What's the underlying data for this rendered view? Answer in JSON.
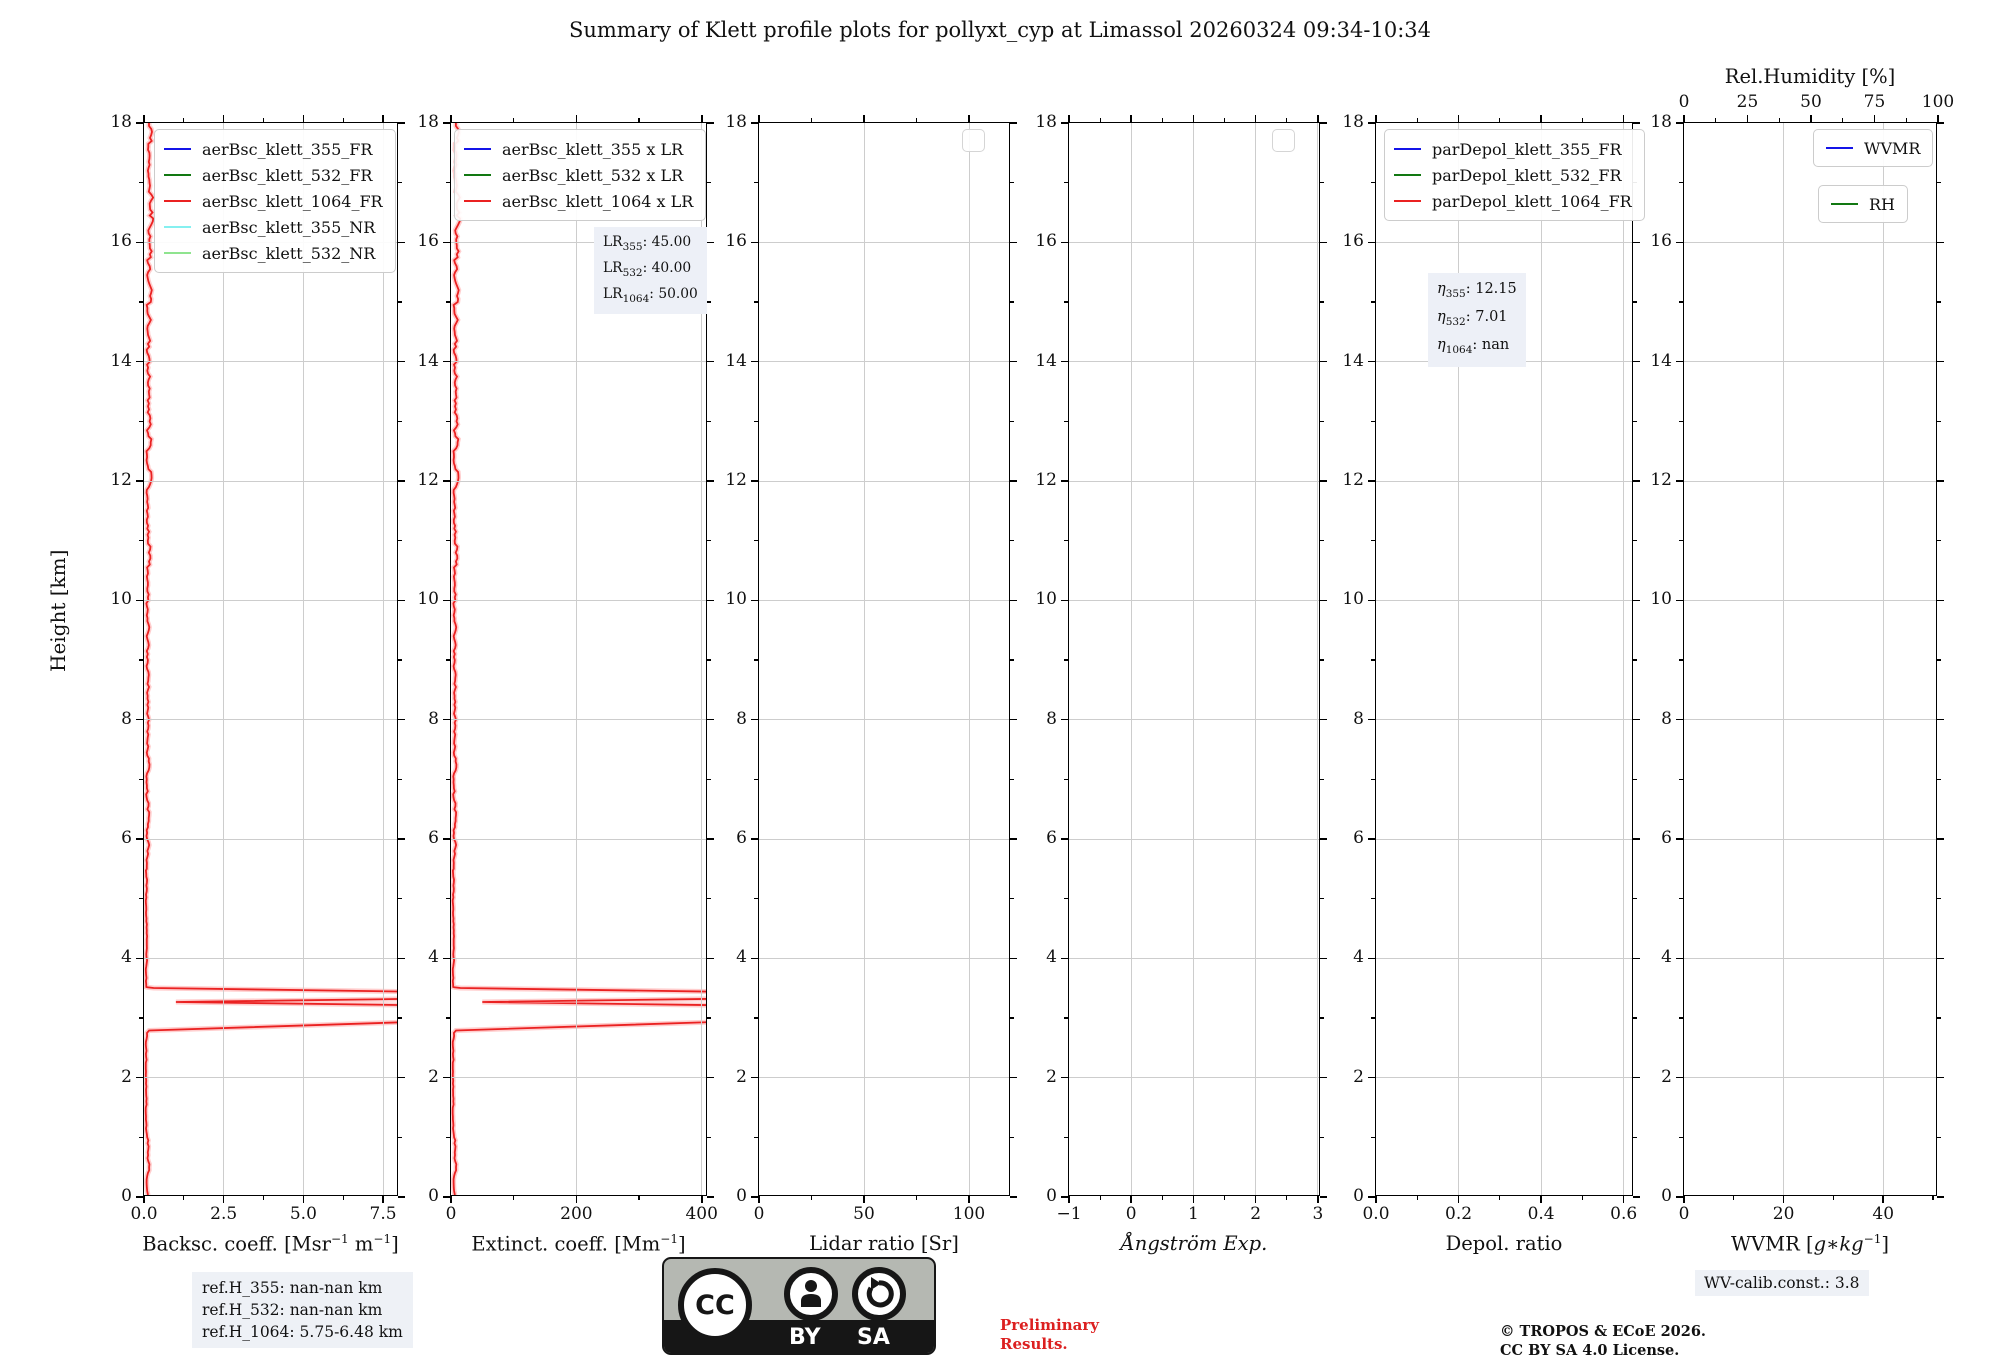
{
  "title": "Summary of Klett profile plots for pollyxt_cyp at Limassol 20260324 09:34-10:34",
  "ylabel": "Height [km]",
  "colors": {
    "blue": "#1414e8",
    "green": "#127812",
    "red": "#ea2121",
    "cyan": "#85f0f0",
    "lightgreen": "#8fe48f",
    "grid": "#cdcdcd",
    "box_bg": "#edf0f7",
    "prelim_red": "#dc2020"
  },
  "plots": {
    "backscatter": {
      "xlabel": {
        "a": "Backsc. coeff. [Msr",
        "s1": "−1",
        "b": " m",
        "s2": "−1",
        "c": "]"
      },
      "legend": [
        {
          "label": "aerBsc_klett_355_FR",
          "color": "blue"
        },
        {
          "label": "aerBsc_klett_532_FR",
          "color": "green"
        },
        {
          "label": "aerBsc_klett_1064_FR",
          "color": "red"
        },
        {
          "label": "aerBsc_klett_355_NR",
          "color": "cyan"
        },
        {
          "label": "aerBsc_klett_532_NR",
          "color": "lightgreen"
        }
      ]
    },
    "extinction": {
      "xlabel": {
        "a": "Extinct. coeff. [Mm",
        "s1": "−1",
        "c": "]"
      },
      "legend": [
        {
          "label": "aerBsc_klett_355 x LR",
          "color": "blue"
        },
        {
          "label": "aerBsc_klett_532 x LR",
          "color": "green"
        },
        {
          "label": "aerBsc_klett_1064 x LR",
          "color": "red"
        }
      ],
      "lr_box": [
        {
          "pre": "LR",
          "sub": "355",
          "val": ": 45.00"
        },
        {
          "pre": "LR",
          "sub": "532",
          "val": ": 40.00"
        },
        {
          "pre": "LR",
          "sub": "1064",
          "val": ": 50.00"
        }
      ]
    },
    "lidar_ratio": {
      "xlabel": {
        "a": "Lidar ratio [Sr]"
      }
    },
    "angstrom": {
      "xlabel": {
        "a": "Ångström Exp."
      }
    },
    "depol": {
      "xlabel": {
        "a": "Depol. ratio"
      },
      "legend": [
        {
          "label": "parDepol_klett_355_FR",
          "color": "blue"
        },
        {
          "label": "parDepol_klett_532_FR",
          "color": "green"
        },
        {
          "label": "parDepol_klett_1064_FR",
          "color": "red"
        }
      ],
      "eta_box": [
        {
          "pre": "η",
          "sub": "355",
          "val": ": 12.15"
        },
        {
          "pre": "η",
          "sub": "532",
          "val": ": 7.01"
        },
        {
          "pre": "η",
          "sub": "1064",
          "val": ": nan"
        }
      ]
    },
    "wvmr": {
      "xlabel": {
        "a": "WVMR [",
        "it": "g∗kg",
        "s1": "−1",
        "c": "]"
      },
      "top_label": "Rel.Humidity [%]",
      "legend_wvmr": {
        "label": "WVMR",
        "color": "blue"
      },
      "legend_rh": {
        "label": "RH",
        "color": "green"
      }
    }
  },
  "footer": {
    "ref_box": [
      "ref.H_355: nan-nan km",
      "ref.H_532: nan-nan km",
      "ref.H_1064: 5.75-6.48 km"
    ],
    "preliminary": [
      "Preliminary",
      "Results."
    ],
    "copyright": [
      "© TROPOS & ECoE 2026.",
      "CC BY SA 4.0 License."
    ],
    "wv_calib": "WV-calib.const.: 3.8",
    "cc_badge": {
      "cc": "CC",
      "by": "BY",
      "sa": "SA"
    }
  },
  "chart_data": {
    "type": "line",
    "ylim": [
      0,
      18
    ],
    "yticks": [
      0,
      2,
      4,
      6,
      8,
      10,
      12,
      14,
      16,
      18
    ],
    "ytick_labels": [
      "0",
      "2",
      "4",
      "6",
      "8",
      "10",
      "12",
      "14",
      "16",
      "18"
    ],
    "ytick_minor": [
      1,
      3,
      5,
      7,
      9,
      11,
      13,
      15,
      17
    ],
    "plots": [
      {
        "key": "backscatter",
        "xlim": [
          0,
          8.0
        ],
        "xticks": [
          0,
          2.5,
          5.0,
          7.5
        ],
        "xtick_labels": [
          "0.0",
          "2.5",
          "5.0",
          "7.5"
        ],
        "red_scale": 1,
        "has_curve": true
      },
      {
        "key": "extinction",
        "xlim": [
          0,
          410
        ],
        "xticks": [
          0,
          200,
          400
        ],
        "xtick_labels": [
          "0",
          "200",
          "400"
        ],
        "red_scale": 50,
        "has_curve": true
      },
      {
        "key": "lidar_ratio",
        "xlim": [
          0,
          120
        ],
        "xticks": [
          0,
          50,
          100
        ],
        "xtick_labels": [
          "0",
          "50",
          "100"
        ],
        "has_curve": false,
        "empty_legend": true
      },
      {
        "key": "angstrom",
        "xlim": [
          -1,
          3.05
        ],
        "xticks": [
          -1,
          0,
          1,
          2,
          3
        ],
        "xtick_labels": [
          "−1",
          "0",
          "1",
          "2",
          "3"
        ],
        "has_curve": false,
        "empty_legend": true
      },
      {
        "key": "depol",
        "xlim": [
          0,
          0.625
        ],
        "xticks": [
          0,
          0.2,
          0.4,
          0.6
        ],
        "xtick_labels": [
          "0.0",
          "0.2",
          "0.4",
          "0.6"
        ],
        "has_curve": false
      },
      {
        "key": "wvmr",
        "xlim": [
          0,
          51
        ],
        "xticks": [
          0,
          20,
          40
        ],
        "xtick_labels": [
          "0",
          "20",
          "40"
        ],
        "has_curve": false,
        "top_axis": {
          "xlim": [
            0,
            100
          ],
          "ticks": [
            0,
            25,
            50,
            75,
            100
          ],
          "labels": [
            "0",
            "25",
            "50",
            "75",
            "100"
          ]
        }
      }
    ],
    "red_profile": {
      "comment": "aerBsc_klett_1064_FR profile, backscatter units; extinction = value x LR 50",
      "spike_points": [
        [
          2.79,
          0.16
        ],
        [
          2.935,
          8.45
        ],
        [
          3.05,
          8.45
        ],
        [
          3.215,
          8.45
        ],
        [
          3.268,
          1.0
        ],
        [
          3.322,
          8.45
        ],
        [
          3.44,
          8.45
        ],
        [
          3.503,
          0.3
        ],
        [
          3.515,
          0.1
        ]
      ],
      "noise_step": 0.05,
      "noise_seed": 13,
      "noise_segments": [
        {
          "from": 0.0,
          "to": 1.0,
          "base": 0.08,
          "amp": 0.14
        },
        {
          "from": 1.0,
          "to": 2.79,
          "base": 0.05,
          "amp": 0.06
        },
        {
          "from": 3.52,
          "to": 5.5,
          "base": 0.05,
          "amp": 0.06
        },
        {
          "from": 5.5,
          "to": 10.3,
          "base": 0.06,
          "amp": 0.13
        },
        {
          "from": 10.3,
          "to": 15.0,
          "base": 0.06,
          "amp": 0.2
        },
        {
          "from": 15.0,
          "to": 18.0,
          "base": 0.08,
          "amp": 0.26
        }
      ]
    }
  }
}
